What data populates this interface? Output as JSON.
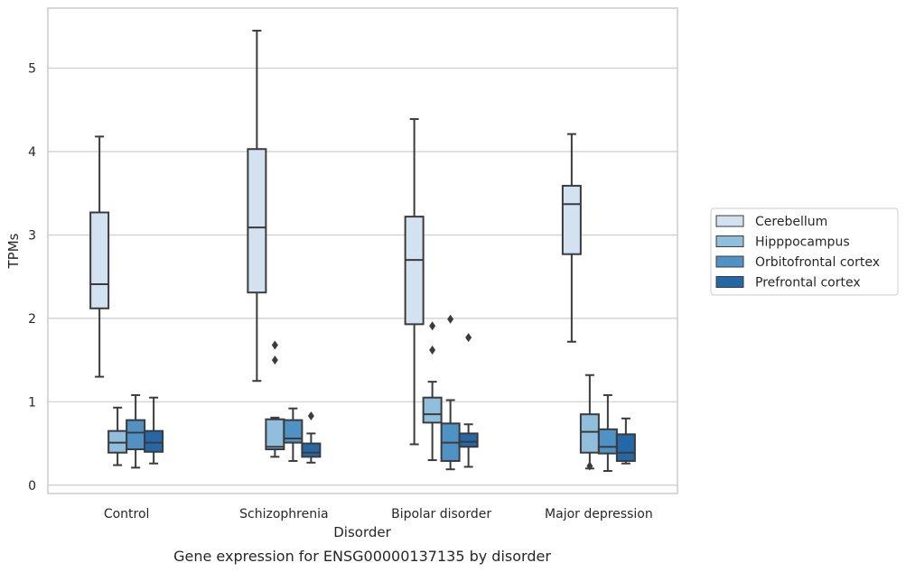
{
  "chart_data": {
    "type": "box",
    "caption": "Gene expression for ENSG00000137135 by disorder",
    "xlabel": "Disorder",
    "ylabel": "TPMs",
    "ylim": [
      -0.1,
      5.72
    ],
    "yticks": [
      0,
      1,
      2,
      3,
      4,
      5
    ],
    "grid": "horizontal",
    "legend_position": "right",
    "categories": [
      "Control",
      "Schizophrenia",
      "Bipolar disorder",
      "Major depression"
    ],
    "series": [
      {
        "name": "Cerebellum",
        "color": "#d2e2f1",
        "boxes": [
          {
            "whislo": 1.3,
            "q1": 2.12,
            "med": 2.41,
            "q3": 3.27,
            "whishi": 4.18,
            "fliers": []
          },
          {
            "whislo": 1.25,
            "q1": 2.31,
            "med": 3.09,
            "q3": 4.03,
            "whishi": 5.45,
            "fliers": []
          },
          {
            "whislo": 0.49,
            "q1": 1.93,
            "med": 2.7,
            "q3": 3.22,
            "whishi": 4.39,
            "fliers": []
          },
          {
            "whislo": 1.72,
            "q1": 2.77,
            "med": 3.37,
            "q3": 3.59,
            "whishi": 4.21,
            "fliers": []
          }
        ]
      },
      {
        "name": "Hipppocampus",
        "color": "#90bfdd",
        "boxes": [
          {
            "whislo": 0.24,
            "q1": 0.39,
            "med": 0.51,
            "q3": 0.65,
            "whishi": 0.93,
            "fliers": []
          },
          {
            "whislo": 0.34,
            "q1": 0.43,
            "med": 0.46,
            "q3": 0.79,
            "whishi": 0.81,
            "fliers": [
              1.5,
              1.68
            ]
          },
          {
            "whislo": 0.3,
            "q1": 0.75,
            "med": 0.85,
            "q3": 1.05,
            "whishi": 1.24,
            "fliers": [
              1.62,
              1.91
            ]
          },
          {
            "whislo": 0.2,
            "q1": 0.39,
            "med": 0.64,
            "q3": 0.85,
            "whishi": 1.32,
            "fliers": [
              0.23
            ]
          }
        ]
      },
      {
        "name": "Orbitofrontal cortex",
        "color": "#4f93c4",
        "boxes": [
          {
            "whislo": 0.21,
            "q1": 0.43,
            "med": 0.63,
            "q3": 0.78,
            "whishi": 1.08,
            "fliers": []
          },
          {
            "whislo": 0.29,
            "q1": 0.51,
            "med": 0.56,
            "q3": 0.78,
            "whishi": 0.92,
            "fliers": []
          },
          {
            "whislo": 0.19,
            "q1": 0.29,
            "med": 0.51,
            "q3": 0.74,
            "whishi": 1.02,
            "fliers": [
              1.99
            ]
          },
          {
            "whislo": 0.17,
            "q1": 0.38,
            "med": 0.46,
            "q3": 0.67,
            "whishi": 1.08,
            "fliers": []
          }
        ]
      },
      {
        "name": "Prefrontal cortex",
        "color": "#2568a8",
        "boxes": [
          {
            "whislo": 0.26,
            "q1": 0.4,
            "med": 0.51,
            "q3": 0.65,
            "whishi": 1.05,
            "fliers": []
          },
          {
            "whislo": 0.27,
            "q1": 0.34,
            "med": 0.39,
            "q3": 0.5,
            "whishi": 0.62,
            "fliers": [
              0.83
            ]
          },
          {
            "whislo": 0.22,
            "q1": 0.46,
            "med": 0.52,
            "q3": 0.62,
            "whishi": 0.73,
            "fliers": [
              1.77
            ]
          },
          {
            "whislo": 0.26,
            "q1": 0.29,
            "med": 0.39,
            "q3": 0.61,
            "whishi": 0.8,
            "fliers": []
          }
        ]
      }
    ]
  }
}
